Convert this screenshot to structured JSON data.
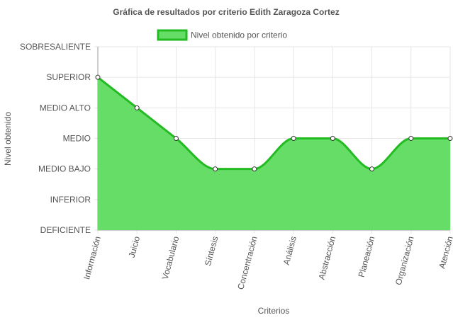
{
  "chart_data": {
    "type": "area",
    "title": "Gráfica de resultados por criterio Edith Zaragoza Cortez",
    "xlabel": "Criterios",
    "ylabel": "Nivel obtenido",
    "y_levels": [
      "DEFICIENTE",
      "INFERIOR",
      "MEDIO BAJO",
      "MEDIO",
      "MEDIO ALTO",
      "SUPERIOR",
      "SOBRESALIENTE"
    ],
    "ylim": [
      0,
      6
    ],
    "categories": [
      "Información",
      "Juicio",
      "Vocabulario",
      "Síntesis",
      "Concentración",
      "Análisis",
      "Abstracción",
      "Planeación",
      "Organización",
      "Atención"
    ],
    "series": [
      {
        "name": "Nivel obtenido por criterio",
        "values": [
          5,
          4,
          3,
          2,
          2,
          3,
          3,
          2,
          3,
          3
        ],
        "labels": [
          "SUPERIOR",
          "MEDIO ALTO",
          "MEDIO",
          "MEDIO BAJO",
          "MEDIO BAJO",
          "MEDIO",
          "MEDIO",
          "MEDIO BAJO",
          "MEDIO",
          "MEDIO"
        ]
      }
    ],
    "legend_position": "top",
    "grid": true,
    "colors": {
      "fill": "#66dd66",
      "line": "#22bb22",
      "point_fill": "#ffffff",
      "point_stroke": "#333333",
      "grid": "#e6e6e6",
      "axis": "#999999"
    }
  }
}
